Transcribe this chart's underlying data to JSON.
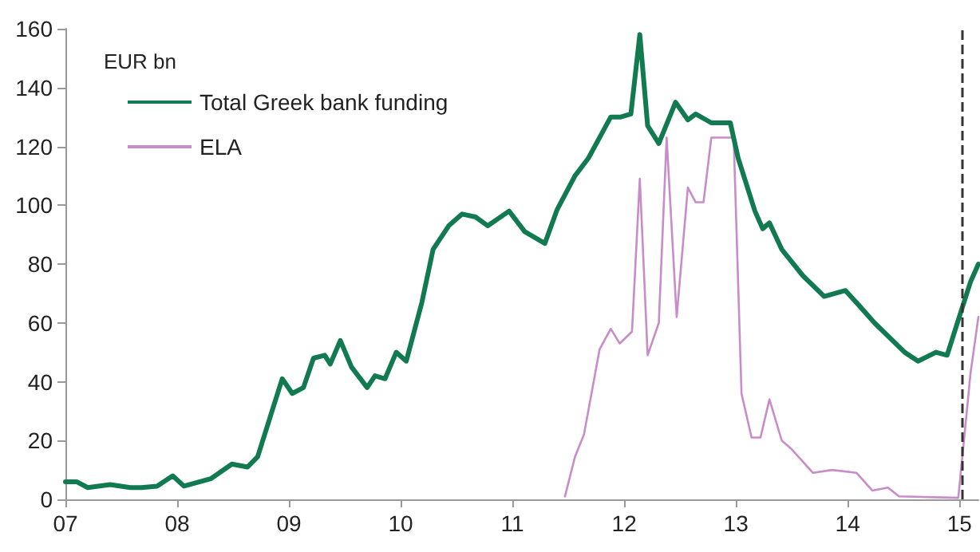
{
  "chart_data": {
    "type": "line",
    "ylabel": "EUR bn",
    "xlim": [
      7,
      15.17
    ],
    "xticks": [
      {
        "value": 7,
        "label": "07"
      },
      {
        "value": 8,
        "label": "08"
      },
      {
        "value": 9,
        "label": "09"
      },
      {
        "value": 10,
        "label": "10"
      },
      {
        "value": 11,
        "label": "11"
      },
      {
        "value": 12,
        "label": "12"
      },
      {
        "value": 13,
        "label": "13"
      },
      {
        "value": 14,
        "label": "14"
      },
      {
        "value": 15,
        "label": "15"
      }
    ],
    "ylim": [
      0,
      160
    ],
    "yticks": [
      0,
      20,
      40,
      60,
      80,
      100,
      120,
      140,
      160
    ],
    "grid": false,
    "legend": "top left",
    "marker": "none",
    "line_style": "solid",
    "ref_lines": [
      {
        "axis": "x",
        "value": 15.03,
        "color": "#333333",
        "line_style": "dashed"
      }
    ],
    "series": [
      {
        "name": "Total Greek bank funding",
        "color": "#127a50",
        "x": [
          7.0,
          7.1,
          7.2,
          7.4,
          7.58,
          7.68,
          7.82,
          7.96,
          8.06,
          8.3,
          8.49,
          8.63,
          8.72,
          8.94,
          9.03,
          9.13,
          9.22,
          9.32,
          9.37,
          9.46,
          9.56,
          9.7,
          9.77,
          9.86,
          9.96,
          10.05,
          10.19,
          10.29,
          10.43,
          10.55,
          10.67,
          10.78,
          10.97,
          11.11,
          11.29,
          11.4,
          11.56,
          11.68,
          11.88,
          11.97,
          12.06,
          12.14,
          12.21,
          12.31,
          12.46,
          12.57,
          12.64,
          12.78,
          12.95,
          13.02,
          13.17,
          13.24,
          13.3,
          13.41,
          13.6,
          13.79,
          13.98,
          14.1,
          14.24,
          14.51,
          14.63,
          14.79,
          14.89,
          14.99,
          15.1,
          15.17
        ],
        "values": [
          6,
          6,
          4,
          5,
          4,
          4,
          4.5,
          8,
          4.5,
          7,
          12,
          11,
          14.5,
          41,
          36,
          38,
          48,
          49,
          46,
          54,
          45,
          38,
          42,
          41,
          50,
          47,
          67,
          85,
          93,
          97,
          96,
          93,
          98,
          91,
          87,
          98.5,
          110,
          116,
          130,
          130,
          131,
          158,
          127,
          121,
          135,
          129,
          131,
          128,
          128,
          116,
          98,
          92,
          94,
          85,
          76,
          69,
          71,
          66,
          60,
          50,
          47,
          50,
          49,
          61,
          74,
          80
        ]
      },
      {
        "name": "ELA",
        "color": "#c88cc8",
        "x": [
          11.47,
          11.56,
          11.64,
          11.78,
          11.88,
          11.96,
          12.07,
          12.14,
          12.21,
          12.31,
          12.38,
          12.47,
          12.57,
          12.64,
          12.71,
          12.78,
          12.98,
          13.05,
          13.14,
          13.22,
          13.3,
          13.41,
          13.5,
          13.69,
          13.86,
          14.08,
          14.22,
          14.36,
          14.46,
          14.99,
          15.1,
          15.17
        ],
        "values": [
          1,
          14.5,
          22,
          51,
          58,
          53,
          57,
          109,
          49,
          60,
          123,
          62,
          106,
          101,
          101,
          123,
          123,
          36,
          21,
          21,
          34,
          20,
          17,
          9,
          10,
          9,
          3,
          4,
          1,
          0.5,
          43,
          62
        ]
      }
    ]
  }
}
